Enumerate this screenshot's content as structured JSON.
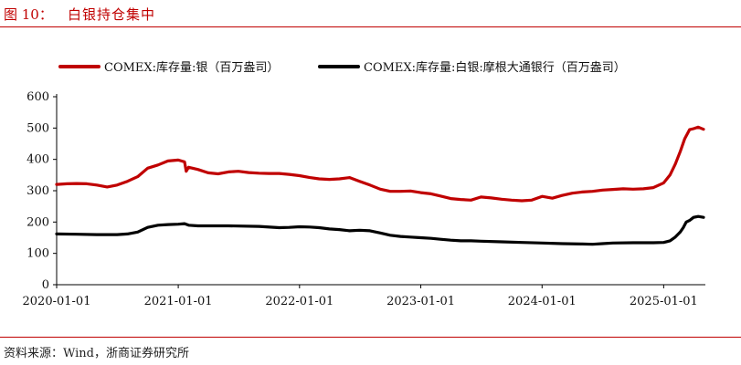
{
  "header": {
    "figure_number": "图 10：",
    "title": "白银持仓集中"
  },
  "source": "资料来源：Wind，浙商证券研究所",
  "colors": {
    "series1": "#c00000",
    "series2": "#000000",
    "accent": "#c00000"
  },
  "chart_data": {
    "type": "line",
    "title": "白银持仓集中",
    "xlabel": "",
    "ylabel": "",
    "ylim": [
      0,
      600
    ],
    "yticks": [
      "0",
      "100",
      "200",
      "300",
      "400",
      "500",
      "600"
    ],
    "xlim": [
      "2020-01-01",
      "2025-05-01"
    ],
    "xticks": [
      "2020-01-01",
      "2021-01-01",
      "2022-01-01",
      "2023-01-01",
      "2024-01-01",
      "2025-01-01"
    ],
    "grid": false,
    "legend": "top",
    "series": [
      {
        "name": "COMEX:库存量:银（百万盎司）",
        "points": [
          [
            "2020-01-01",
            320
          ],
          [
            "2020-02-01",
            322
          ],
          [
            "2020-03-01",
            323
          ],
          [
            "2020-04-01",
            322
          ],
          [
            "2020-05-01",
            318
          ],
          [
            "2020-06-01",
            312
          ],
          [
            "2020-07-01",
            318
          ],
          [
            "2020-08-01",
            330
          ],
          [
            "2020-09-01",
            345
          ],
          [
            "2020-10-01",
            372
          ],
          [
            "2020-11-01",
            382
          ],
          [
            "2020-12-01",
            395
          ],
          [
            "2021-01-01",
            398
          ],
          [
            "2021-01-20",
            392
          ],
          [
            "2021-01-25",
            362
          ],
          [
            "2021-02-01",
            375
          ],
          [
            "2021-03-01",
            368
          ],
          [
            "2021-04-01",
            357
          ],
          [
            "2021-05-01",
            354
          ],
          [
            "2021-06-01",
            360
          ],
          [
            "2021-07-01",
            362
          ],
          [
            "2021-08-01",
            358
          ],
          [
            "2021-09-01",
            356
          ],
          [
            "2021-10-01",
            355
          ],
          [
            "2021-11-01",
            355
          ],
          [
            "2021-12-01",
            352
          ],
          [
            "2022-01-01",
            348
          ],
          [
            "2022-02-01",
            342
          ],
          [
            "2022-03-01",
            338
          ],
          [
            "2022-04-01",
            336
          ],
          [
            "2022-05-01",
            338
          ],
          [
            "2022-06-01",
            342
          ],
          [
            "2022-07-01",
            330
          ],
          [
            "2022-08-01",
            318
          ],
          [
            "2022-09-01",
            305
          ],
          [
            "2022-10-01",
            298
          ],
          [
            "2022-11-01",
            298
          ],
          [
            "2022-12-01",
            299
          ],
          [
            "2023-01-01",
            294
          ],
          [
            "2023-02-01",
            290
          ],
          [
            "2023-03-01",
            283
          ],
          [
            "2023-04-01",
            275
          ],
          [
            "2023-05-01",
            272
          ],
          [
            "2023-06-01",
            270
          ],
          [
            "2023-07-01",
            280
          ],
          [
            "2023-08-01",
            277
          ],
          [
            "2023-09-01",
            273
          ],
          [
            "2023-10-01",
            270
          ],
          [
            "2023-11-01",
            268
          ],
          [
            "2023-12-01",
            270
          ],
          [
            "2024-01-01",
            282
          ],
          [
            "2024-02-01",
            276
          ],
          [
            "2024-03-01",
            285
          ],
          [
            "2024-04-01",
            292
          ],
          [
            "2024-05-01",
            296
          ],
          [
            "2024-06-01",
            298
          ],
          [
            "2024-07-01",
            302
          ],
          [
            "2024-08-01",
            304
          ],
          [
            "2024-09-01",
            306
          ],
          [
            "2024-10-01",
            305
          ],
          [
            "2024-11-01",
            306
          ],
          [
            "2024-12-01",
            310
          ],
          [
            "2025-01-01",
            325
          ],
          [
            "2025-01-20",
            350
          ],
          [
            "2025-02-05",
            385
          ],
          [
            "2025-02-20",
            425
          ],
          [
            "2025-03-05",
            465
          ],
          [
            "2025-03-20",
            495
          ],
          [
            "2025-04-01",
            498
          ],
          [
            "2025-04-15",
            503
          ],
          [
            "2025-05-01",
            496
          ]
        ]
      },
      {
        "name": "COMEX:库存量:白银:摩根大通银行（百万盎司）",
        "points": [
          [
            "2020-01-01",
            162
          ],
          [
            "2020-03-01",
            161
          ],
          [
            "2020-05-01",
            160
          ],
          [
            "2020-07-01",
            160
          ],
          [
            "2020-08-01",
            162
          ],
          [
            "2020-09-01",
            168
          ],
          [
            "2020-10-01",
            183
          ],
          [
            "2020-11-01",
            190
          ],
          [
            "2020-12-01",
            192
          ],
          [
            "2021-01-01",
            193
          ],
          [
            "2021-01-20",
            195
          ],
          [
            "2021-02-01",
            190
          ],
          [
            "2021-03-01",
            188
          ],
          [
            "2021-06-01",
            188
          ],
          [
            "2021-09-01",
            186
          ],
          [
            "2021-11-01",
            182
          ],
          [
            "2021-12-01",
            183
          ],
          [
            "2022-01-01",
            185
          ],
          [
            "2022-02-01",
            184
          ],
          [
            "2022-03-01",
            182
          ],
          [
            "2022-04-01",
            178
          ],
          [
            "2022-05-01",
            176
          ],
          [
            "2022-06-01",
            172
          ],
          [
            "2022-07-01",
            174
          ],
          [
            "2022-08-01",
            172
          ],
          [
            "2022-09-01",
            165
          ],
          [
            "2022-10-01",
            158
          ],
          [
            "2022-11-01",
            154
          ],
          [
            "2022-12-01",
            152
          ],
          [
            "2023-01-01",
            150
          ],
          [
            "2023-02-01",
            148
          ],
          [
            "2023-03-01",
            145
          ],
          [
            "2023-04-01",
            142
          ],
          [
            "2023-05-01",
            140
          ],
          [
            "2023-06-01",
            140
          ],
          [
            "2023-07-01",
            139
          ],
          [
            "2023-09-01",
            137
          ],
          [
            "2023-11-01",
            135
          ],
          [
            "2024-01-01",
            133
          ],
          [
            "2024-03-01",
            131
          ],
          [
            "2024-05-01",
            130
          ],
          [
            "2024-06-01",
            129
          ],
          [
            "2024-07-01",
            131
          ],
          [
            "2024-08-01",
            133
          ],
          [
            "2024-10-01",
            134
          ],
          [
            "2024-12-01",
            134
          ],
          [
            "2025-01-01",
            135
          ],
          [
            "2025-01-20",
            140
          ],
          [
            "2025-02-05",
            152
          ],
          [
            "2025-02-20",
            168
          ],
          [
            "2025-03-01",
            182
          ],
          [
            "2025-03-10",
            200
          ],
          [
            "2025-03-20",
            205
          ],
          [
            "2025-04-01",
            215
          ],
          [
            "2025-04-15",
            218
          ],
          [
            "2025-05-01",
            215
          ]
        ]
      }
    ]
  }
}
